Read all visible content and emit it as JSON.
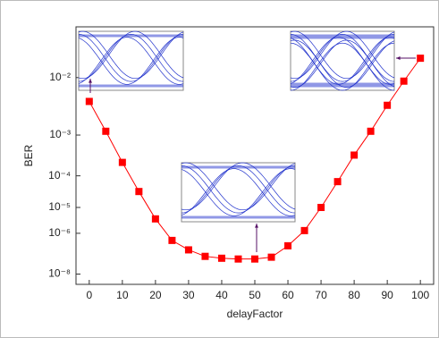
{
  "chart_data": {
    "type": "line",
    "x_label": "delayFactor",
    "y_label": "BER",
    "x": [
      0,
      5,
      10,
      15,
      20,
      25,
      30,
      35,
      40,
      45,
      50,
      55,
      60,
      65,
      70,
      75,
      80,
      85,
      90,
      95,
      100
    ],
    "series": [
      {
        "color": "#ff0000",
        "values": [
          0.0043,
          0.0012,
          0.00023,
          3.4e-05,
          3.8e-06,
          4.9e-07,
          1.8e-07,
          8.7e-08,
          7e-08,
          6.4e-08,
          6.4e-08,
          7.9e-08,
          2.8e-07,
          1.3e-06,
          1e-05,
          6.8e-05,
          0.00035,
          0.0012,
          0.0037,
          0.0089,
          0.018
        ]
      }
    ],
    "xlim": [
      -4,
      104
    ],
    "xticks": [
      0,
      10,
      20,
      30,
      40,
      50,
      60,
      70,
      80,
      90,
      100
    ],
    "yscale": "log-of-negative-log",
    "ylim": [
      0.04,
      2.5e-09
    ],
    "yticks": [
      {
        "value": 0.01,
        "label": "10⁻²"
      },
      {
        "value": 0.001,
        "label": "10⁻³"
      },
      {
        "value": 0.0001,
        "label": "10⁻⁴"
      },
      {
        "value": 1e-05,
        "label": "10⁻⁵"
      },
      {
        "value": 1e-06,
        "label": "10⁻⁶"
      },
      {
        "value": 1e-08,
        "label": "10⁻⁸"
      }
    ]
  }
}
